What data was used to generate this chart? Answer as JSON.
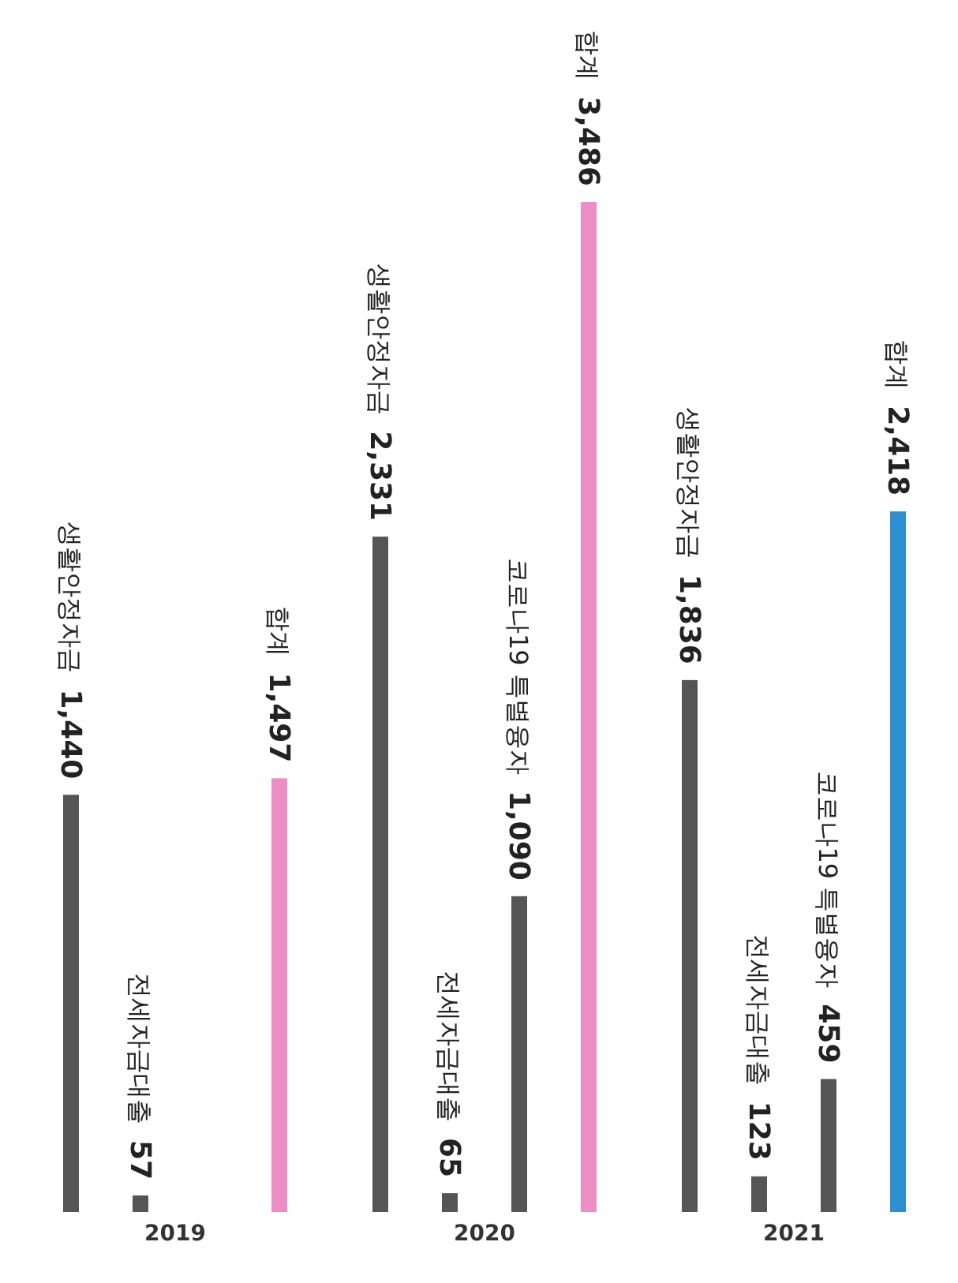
{
  "chart_data": {
    "type": "bar",
    "categories": [
      "2019",
      "2020",
      "2021"
    ],
    "series": [
      {
        "name": "생활안정자금",
        "color": "#555555",
        "values": [
          1440,
          2331,
          1836
        ],
        "value_labels": [
          "1,440",
          "2,331",
          "1,836"
        ]
      },
      {
        "name": "전세자금대출",
        "color": "#555555",
        "values": [
          57,
          65,
          123
        ],
        "value_labels": [
          "57",
          "65",
          "123"
        ]
      },
      {
        "name": "코로나19 특별융자",
        "color": "#555555",
        "values": [
          null,
          1090,
          459
        ],
        "value_labels": [
          null,
          "1,090",
          "459"
        ]
      },
      {
        "name": "합계",
        "color": "#ee8cc4",
        "colors": [
          "#ee8cc4",
          "#ee8cc4",
          "#2b8fd0"
        ],
        "values": [
          1497,
          3486,
          2418
        ],
        "value_labels": [
          "1,497",
          "3,486",
          "2,418"
        ]
      }
    ],
    "grid": false,
    "legend": false
  }
}
